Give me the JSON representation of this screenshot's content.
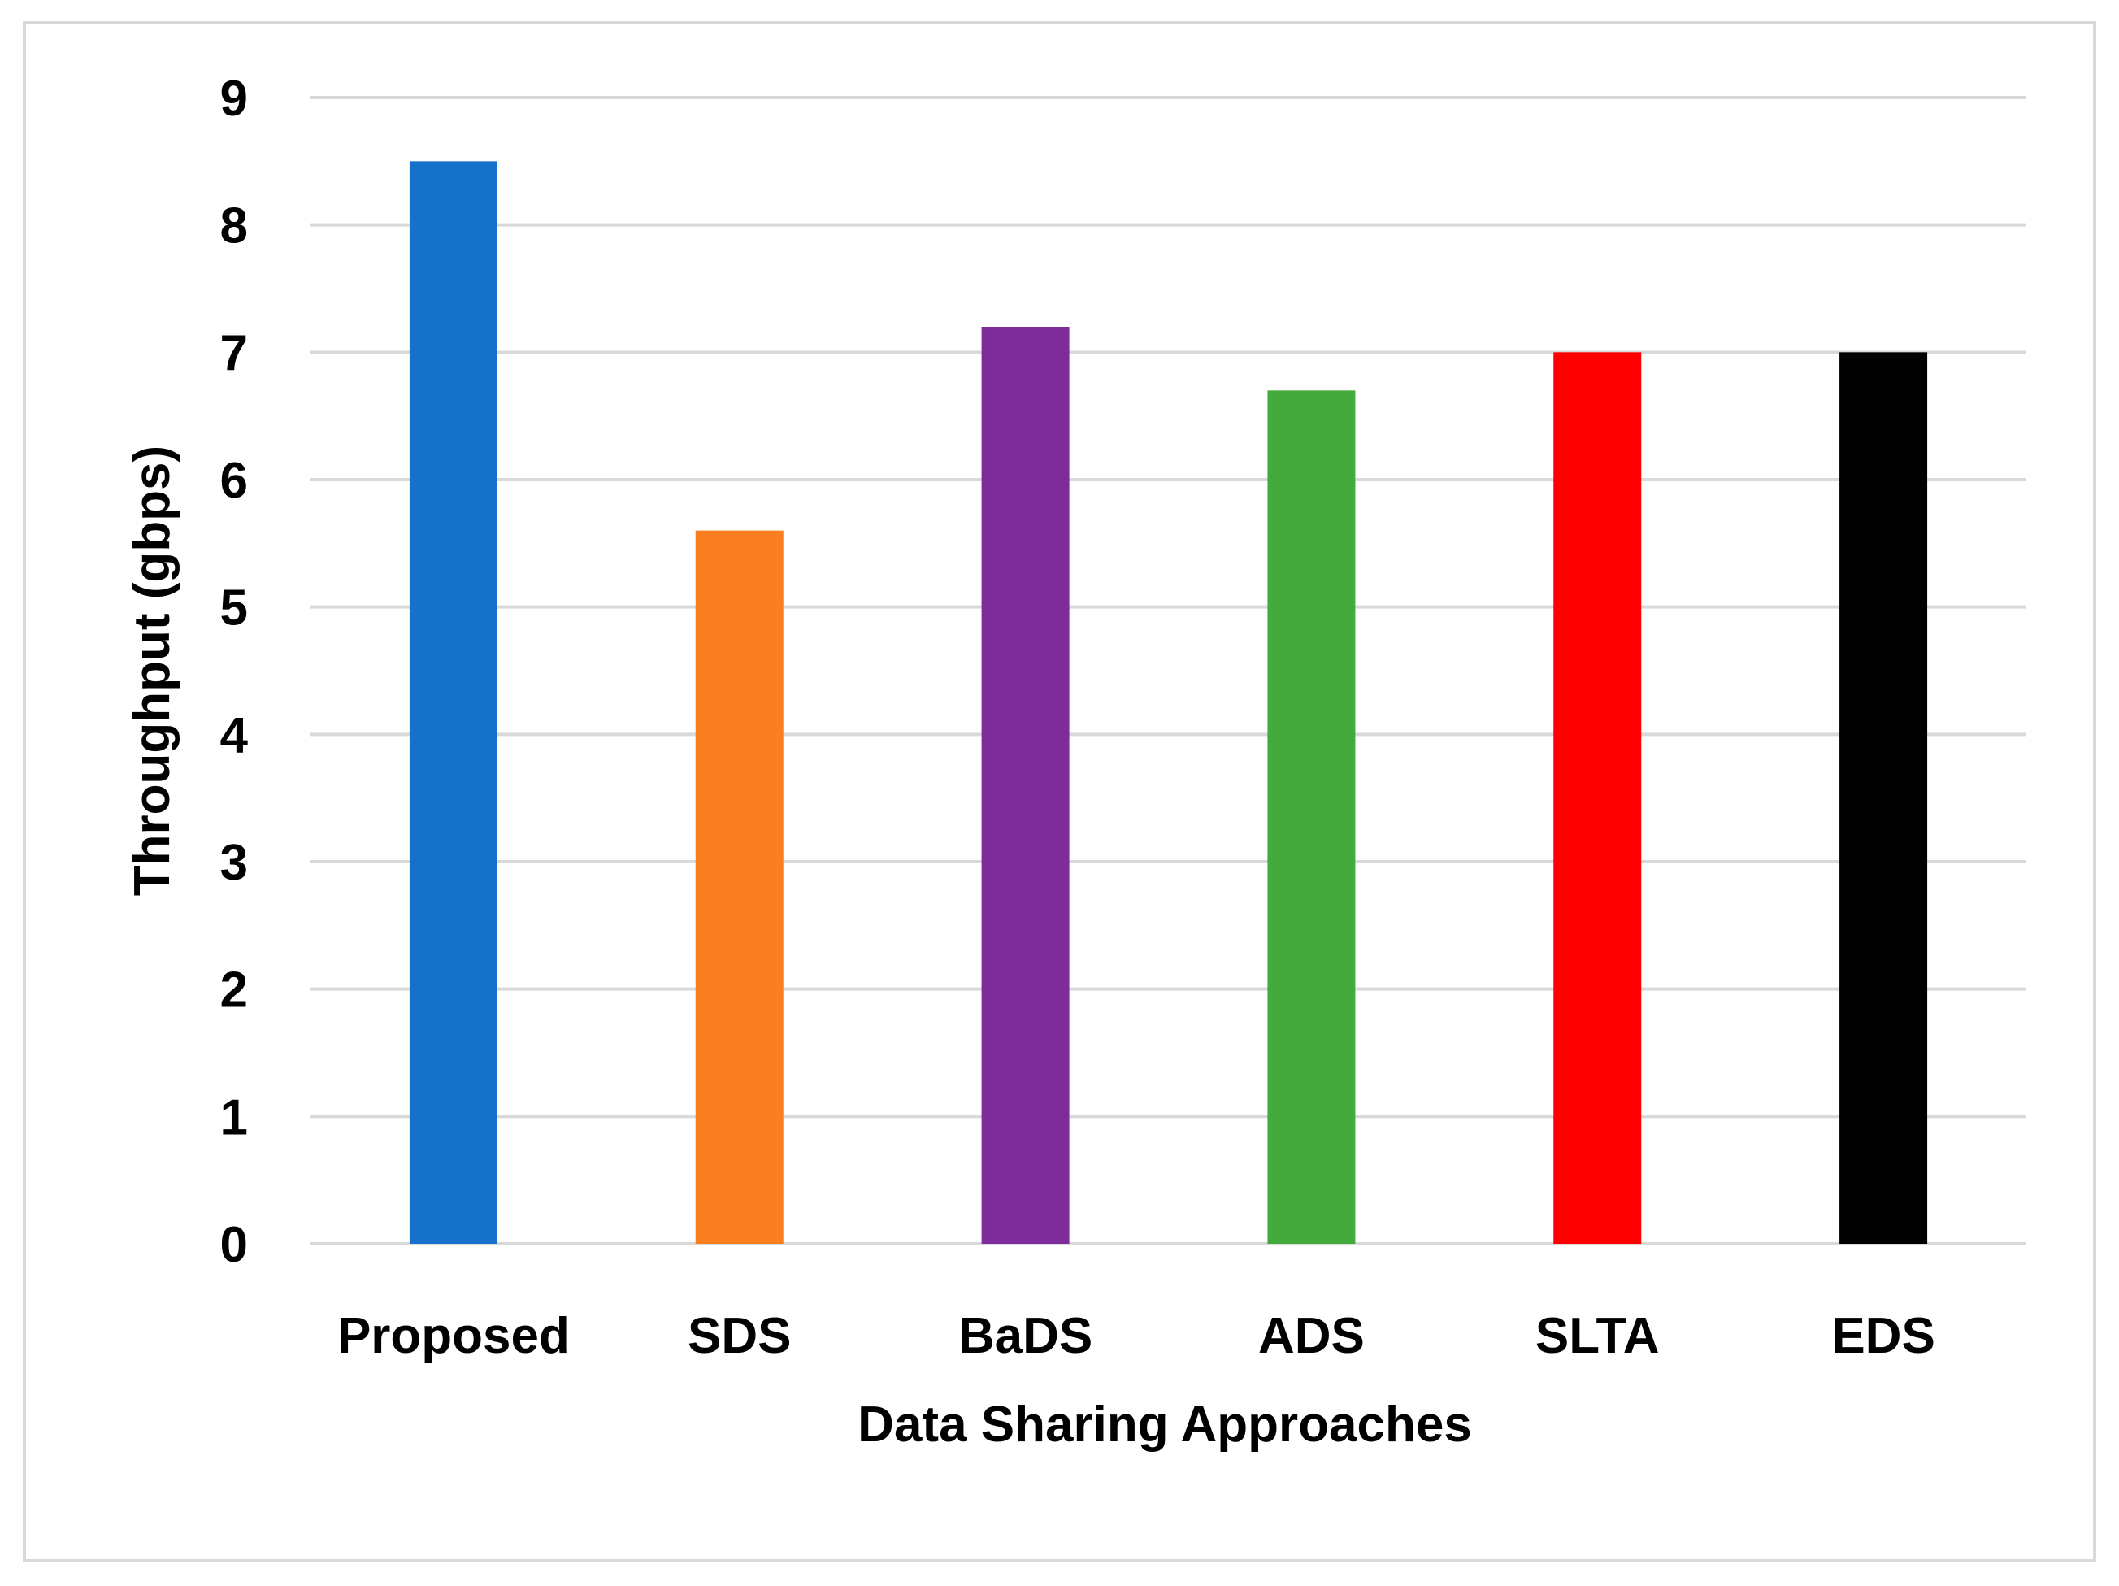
{
  "chart_data": {
    "type": "bar",
    "title": "",
    "xlabel": "Data Sharing Approaches",
    "ylabel": "Throughput (gbps)",
    "ylim": [
      0,
      9
    ],
    "yticks": [
      "0",
      "1",
      "2",
      "3",
      "4",
      "5",
      "6",
      "7",
      "8",
      "9"
    ],
    "grid": true,
    "legend": "none",
    "categories": [
      "Proposed",
      "SDS",
      "BaDS",
      "ADS",
      "SLTA",
      "EDS"
    ],
    "values": [
      8.5,
      5.6,
      7.2,
      6.7,
      7.0,
      7.0
    ],
    "colors": [
      "#1672c9",
      "#fa7f20",
      "#7e2b9c",
      "#43aa3b",
      "#ff0000",
      "#000000"
    ],
    "gridline_color": "#d9d9d9"
  }
}
